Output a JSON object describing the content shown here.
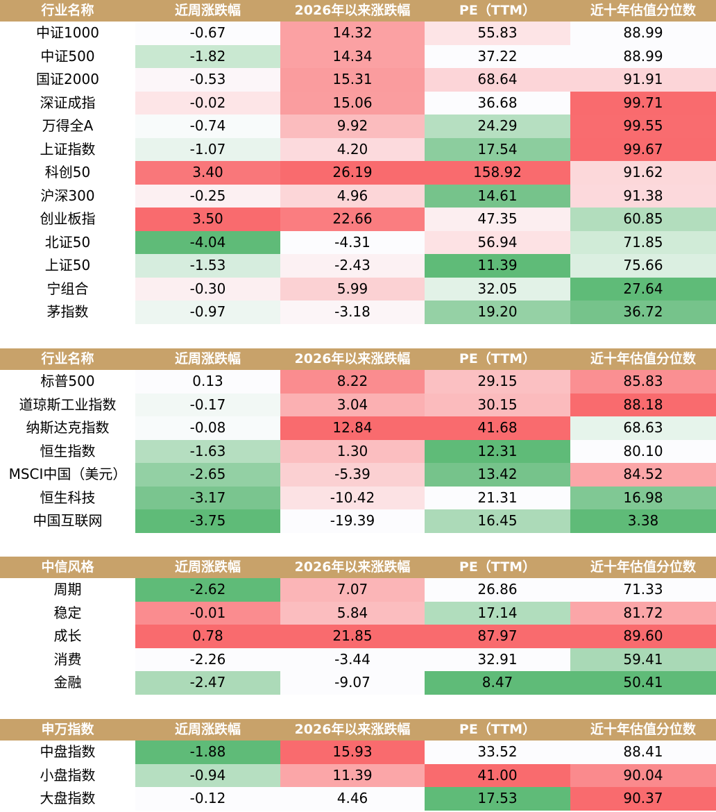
{
  "colors": {
    "header_bg": "#c8a26a",
    "header_text": "#ffffff",
    "red_strong": "#f96b6e",
    "green_strong": "#5fbb78",
    "neutral": "#fcfcfe"
  },
  "tables": [
    {
      "headers": [
        "行业名称",
        "近周涨跌幅",
        "2026年以来涨跌幅",
        "PE（TTM）",
        "近十年估值分位数"
      ],
      "rows": [
        {
          "name": "中证1000",
          "cells": [
            {
              "v": "-0.67",
              "c": "#fcfcfe"
            },
            {
              "v": "14.32",
              "c": "#fba1a3"
            },
            {
              "v": "55.83",
              "c": "#fde4e6"
            },
            {
              "v": "88.99",
              "c": "#fcfcfe"
            }
          ]
        },
        {
          "name": "中证500",
          "cells": [
            {
              "v": "-1.82",
              "c": "#c9e8d1"
            },
            {
              "v": "14.34",
              "c": "#fba1a3"
            },
            {
              "v": "37.22",
              "c": "#fcfcfe"
            },
            {
              "v": "88.99",
              "c": "#fcfcfe"
            }
          ]
        },
        {
          "name": "国证2000",
          "cells": [
            {
              "v": "-0.53",
              "c": "#fcf6f9"
            },
            {
              "v": "15.31",
              "c": "#fa9c9e"
            },
            {
              "v": "68.64",
              "c": "#fcd5d8"
            },
            {
              "v": "91.91",
              "c": "#fcd5d8"
            }
          ]
        },
        {
          "name": "深证成指",
          "cells": [
            {
              "v": "-0.02",
              "c": "#fde5e7"
            },
            {
              "v": "15.06",
              "c": "#fa9d9f"
            },
            {
              "v": "36.68",
              "c": "#fcfcfe"
            },
            {
              "v": "99.71",
              "c": "#f96b6e"
            }
          ]
        },
        {
          "name": "万得全A",
          "cells": [
            {
              "v": "-0.74",
              "c": "#f8fbfb"
            },
            {
              "v": "9.92",
              "c": "#fbbcbe"
            },
            {
              "v": "24.29",
              "c": "#b6dfc1"
            },
            {
              "v": "99.55",
              "c": "#f96c6f"
            }
          ]
        },
        {
          "name": "上证指数",
          "cells": [
            {
              "v": "-1.07",
              "c": "#e8f4ed"
            },
            {
              "v": "4.20",
              "c": "#fcdadd"
            },
            {
              "v": "17.54",
              "c": "#8ccd9e"
            },
            {
              "v": "99.67",
              "c": "#f96b6e"
            }
          ]
        },
        {
          "name": "科创50",
          "cells": [
            {
              "v": "3.40",
              "c": "#f9777a"
            },
            {
              "v": "26.19",
              "c": "#f96b6e"
            },
            {
              "v": "158.92",
              "c": "#f96b6e"
            },
            {
              "v": "91.62",
              "c": "#fcd8da"
            }
          ]
        },
        {
          "name": "沪深300",
          "cells": [
            {
              "v": "-0.25",
              "c": "#fcf0f2"
            },
            {
              "v": "4.96",
              "c": "#fcd6d8"
            },
            {
              "v": "14.61",
              "c": "#76c38b"
            },
            {
              "v": "91.38",
              "c": "#fcd9dc"
            }
          ]
        },
        {
          "name": "创业板指",
          "cells": [
            {
              "v": "3.50",
              "c": "#f96b6e"
            },
            {
              "v": "22.66",
              "c": "#fa7d80"
            },
            {
              "v": "47.35",
              "c": "#fceef0"
            },
            {
              "v": "60.85",
              "c": "#b2ddbd"
            }
          ]
        },
        {
          "name": "北证50",
          "cells": [
            {
              "v": "-4.04",
              "c": "#5fbb78"
            },
            {
              "v": "-4.31",
              "c": "#fcfcfe"
            },
            {
              "v": "56.94",
              "c": "#fde2e4"
            },
            {
              "v": "71.85",
              "c": "#d0ebd7"
            }
          ]
        },
        {
          "name": "上证50",
          "cells": [
            {
              "v": "-1.53",
              "c": "#d6edde"
            },
            {
              "v": "-2.43",
              "c": "#fcf1f3"
            },
            {
              "v": "11.39",
              "c": "#5fbb78"
            },
            {
              "v": "75.66",
              "c": "#dbefe1"
            }
          ]
        },
        {
          "name": "宁组合",
          "cells": [
            {
              "v": "-0.30",
              "c": "#fceff1"
            },
            {
              "v": "5.99",
              "c": "#fbd1d3"
            },
            {
              "v": "32.05",
              "c": "#e2f2e7"
            },
            {
              "v": "27.64",
              "c": "#5fbb78"
            }
          ]
        },
        {
          "name": "茅指数",
          "cells": [
            {
              "v": "-0.97",
              "c": "#edf6f1"
            },
            {
              "v": "-3.18",
              "c": "#fcf5f7"
            },
            {
              "v": "19.20",
              "c": "#95d1a5"
            },
            {
              "v": "36.72",
              "c": "#76c38b"
            }
          ]
        }
      ]
    },
    {
      "headers": [
        "行业名称",
        "近周涨跌幅",
        "2026年以来涨跌幅",
        "PE（TTM）",
        "近十年估值分位数"
      ],
      "rows": [
        {
          "name": "标普500",
          "cells": [
            {
              "v": "0.13",
              "c": "#fcfcfe"
            },
            {
              "v": "8.22",
              "c": "#fa8c8f"
            },
            {
              "v": "29.15",
              "c": "#fbc0c2"
            },
            {
              "v": "85.83",
              "c": "#fa8f92"
            }
          ]
        },
        {
          "name": "道琼斯工业指数",
          "cells": [
            {
              "v": "-0.17",
              "c": "#f2f8f5"
            },
            {
              "v": "3.04",
              "c": "#fbb0b2"
            },
            {
              "v": "30.15",
              "c": "#fbbbbd"
            },
            {
              "v": "88.18",
              "c": "#f96b6e"
            }
          ]
        },
        {
          "name": "纳斯达克指数",
          "cells": [
            {
              "v": "-0.08",
              "c": "#f8fbfb"
            },
            {
              "v": "12.84",
              "c": "#f96b6e"
            },
            {
              "v": "41.68",
              "c": "#f96b6e"
            },
            {
              "v": "68.63",
              "c": "#e6f4eb"
            }
          ]
        },
        {
          "name": "恒生指数",
          "cells": [
            {
              "v": "-1.63",
              "c": "#b5dec0"
            },
            {
              "v": "1.30",
              "c": "#fbbec0"
            },
            {
              "v": "12.31",
              "c": "#5fbb78"
            },
            {
              "v": "80.10",
              "c": "#fcfcfe"
            }
          ]
        },
        {
          "name": "MSCI中国（美元）",
          "cells": [
            {
              "v": "-2.65",
              "c": "#93d0a4"
            },
            {
              "v": "-5.39",
              "c": "#fbd0d2"
            },
            {
              "v": "13.42",
              "c": "#76c38b"
            },
            {
              "v": "84.52",
              "c": "#fba6a8"
            }
          ]
        },
        {
          "name": "恒生科技",
          "cells": [
            {
              "v": "-3.17",
              "c": "#7ac58f"
            },
            {
              "v": "-10.42",
              "c": "#fce2e4"
            },
            {
              "v": "21.31",
              "c": "#fcfcfe"
            },
            {
              "v": "16.98",
              "c": "#80c894"
            }
          ]
        },
        {
          "name": "中国互联网",
          "cells": [
            {
              "v": "-3.75",
              "c": "#5fbb78"
            },
            {
              "v": "-19.39",
              "c": "#fcfcfe"
            },
            {
              "v": "16.45",
              "c": "#acdab8"
            },
            {
              "v": "3.38",
              "c": "#5fbb78"
            }
          ]
        }
      ]
    },
    {
      "headers": [
        "中信风格",
        "近周涨跌幅",
        "2026年以来涨跌幅",
        "PE（TTM）",
        "近十年估值分位数"
      ],
      "rows": [
        {
          "name": "周期",
          "cells": [
            {
              "v": "-2.62",
              "c": "#5fbb78"
            },
            {
              "v": "7.07",
              "c": "#fbb5b7"
            },
            {
              "v": "26.86",
              "c": "#fcfcfe"
            },
            {
              "v": "71.33",
              "c": "#fcfcfe"
            }
          ]
        },
        {
          "name": "稳定",
          "cells": [
            {
              "v": "-0.01",
              "c": "#fa8c8f"
            },
            {
              "v": "5.84",
              "c": "#fbbdbf"
            },
            {
              "v": "17.14",
              "c": "#b1ddbd"
            },
            {
              "v": "81.72",
              "c": "#fba6a8"
            }
          ]
        },
        {
          "name": "成长",
          "cells": [
            {
              "v": "0.78",
              "c": "#f96b6e"
            },
            {
              "v": "21.85",
              "c": "#f96b6e"
            },
            {
              "v": "87.97",
              "c": "#f96b6e"
            },
            {
              "v": "89.60",
              "c": "#f96b6e"
            }
          ]
        },
        {
          "name": "消费",
          "cells": [
            {
              "v": "-2.26",
              "c": "#fcfcfe"
            },
            {
              "v": "-3.44",
              "c": "#fcfcfe"
            },
            {
              "v": "32.91",
              "c": "#fcfcfe"
            },
            {
              "v": "59.41",
              "c": "#a9d9b6"
            }
          ]
        },
        {
          "name": "金融",
          "cells": [
            {
              "v": "-2.47",
              "c": "#acdab8"
            },
            {
              "v": "-9.07",
              "c": "#fcfcfe"
            },
            {
              "v": "8.47",
              "c": "#5fbb78"
            },
            {
              "v": "50.41",
              "c": "#5fbb78"
            }
          ]
        }
      ]
    },
    {
      "headers": [
        "申万指数",
        "近周涨跌幅",
        "2026年以来涨跌幅",
        "PE（TTM）",
        "近十年估值分位数"
      ],
      "rows": [
        {
          "name": "中盘指数",
          "cells": [
            {
              "v": "-1.88",
              "c": "#5fbb78"
            },
            {
              "v": "15.93",
              "c": "#f96b6e"
            },
            {
              "v": "33.52",
              "c": "#fcfcfe"
            },
            {
              "v": "88.41",
              "c": "#fcfcfe"
            }
          ]
        },
        {
          "name": "小盘指数",
          "cells": [
            {
              "v": "-0.94",
              "c": "#b6dfc1"
            },
            {
              "v": "11.39",
              "c": "#fba6a8"
            },
            {
              "v": "41.00",
              "c": "#f96b6e"
            },
            {
              "v": "90.04",
              "c": "#fa8a8d"
            }
          ]
        },
        {
          "name": "大盘指数",
          "cells": [
            {
              "v": "-0.12",
              "c": "#fcfcfe"
            },
            {
              "v": "4.46",
              "c": "#fcfcfe"
            },
            {
              "v": "17.53",
              "c": "#5fbb78"
            },
            {
              "v": "90.37",
              "c": "#f96b6e"
            }
          ]
        }
      ]
    }
  ]
}
